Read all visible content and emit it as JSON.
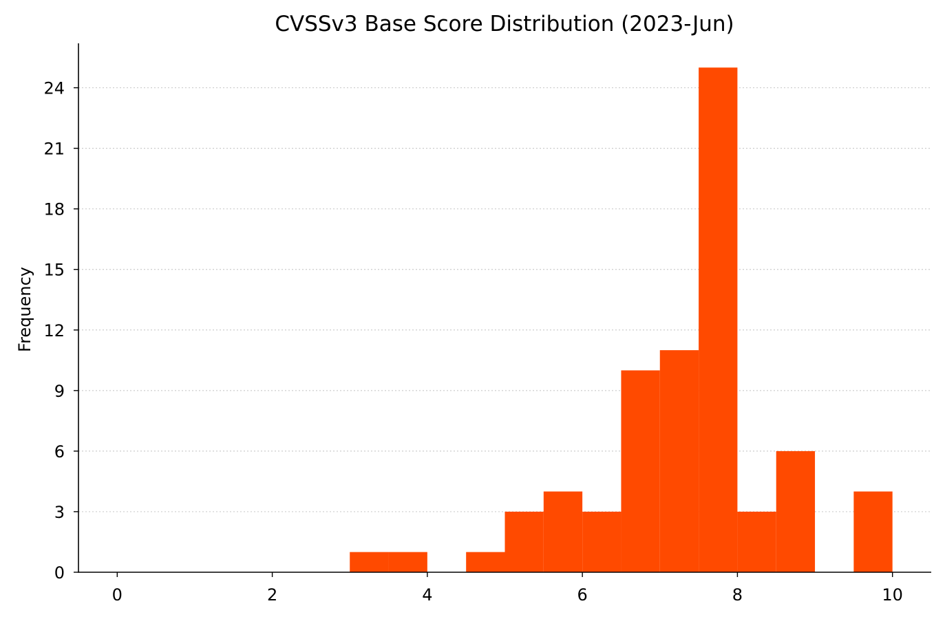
{
  "chart_data": {
    "type": "bar",
    "title": "CVSSv3 Base Score Distribution (2023-Jun)",
    "xlabel": "",
    "ylabel": "Frequency",
    "bar_color": "#ff4a00",
    "grid_color": "#cccccc",
    "grid": "horizontal-dotted",
    "legend": "none",
    "xlim": [
      -0.5,
      10.5
    ],
    "ylim": [
      0,
      26.2
    ],
    "xticks": [
      0,
      2,
      4,
      6,
      8,
      10
    ],
    "yticks": [
      0,
      3,
      6,
      9,
      12,
      15,
      18,
      21,
      24
    ],
    "bins": [
      {
        "start": 3.0,
        "end": 3.5,
        "count": 1
      },
      {
        "start": 3.5,
        "end": 4.0,
        "count": 1
      },
      {
        "start": 4.5,
        "end": 5.0,
        "count": 1
      },
      {
        "start": 5.0,
        "end": 5.5,
        "count": 3
      },
      {
        "start": 5.5,
        "end": 6.0,
        "count": 4
      },
      {
        "start": 6.0,
        "end": 6.5,
        "count": 3
      },
      {
        "start": 6.5,
        "end": 7.0,
        "count": 10
      },
      {
        "start": 7.0,
        "end": 7.5,
        "count": 11
      },
      {
        "start": 7.5,
        "end": 8.0,
        "count": 25
      },
      {
        "start": 8.0,
        "end": 8.5,
        "count": 3
      },
      {
        "start": 8.5,
        "end": 9.0,
        "count": 6
      },
      {
        "start": 9.5,
        "end": 10.0,
        "count": 4
      }
    ]
  }
}
